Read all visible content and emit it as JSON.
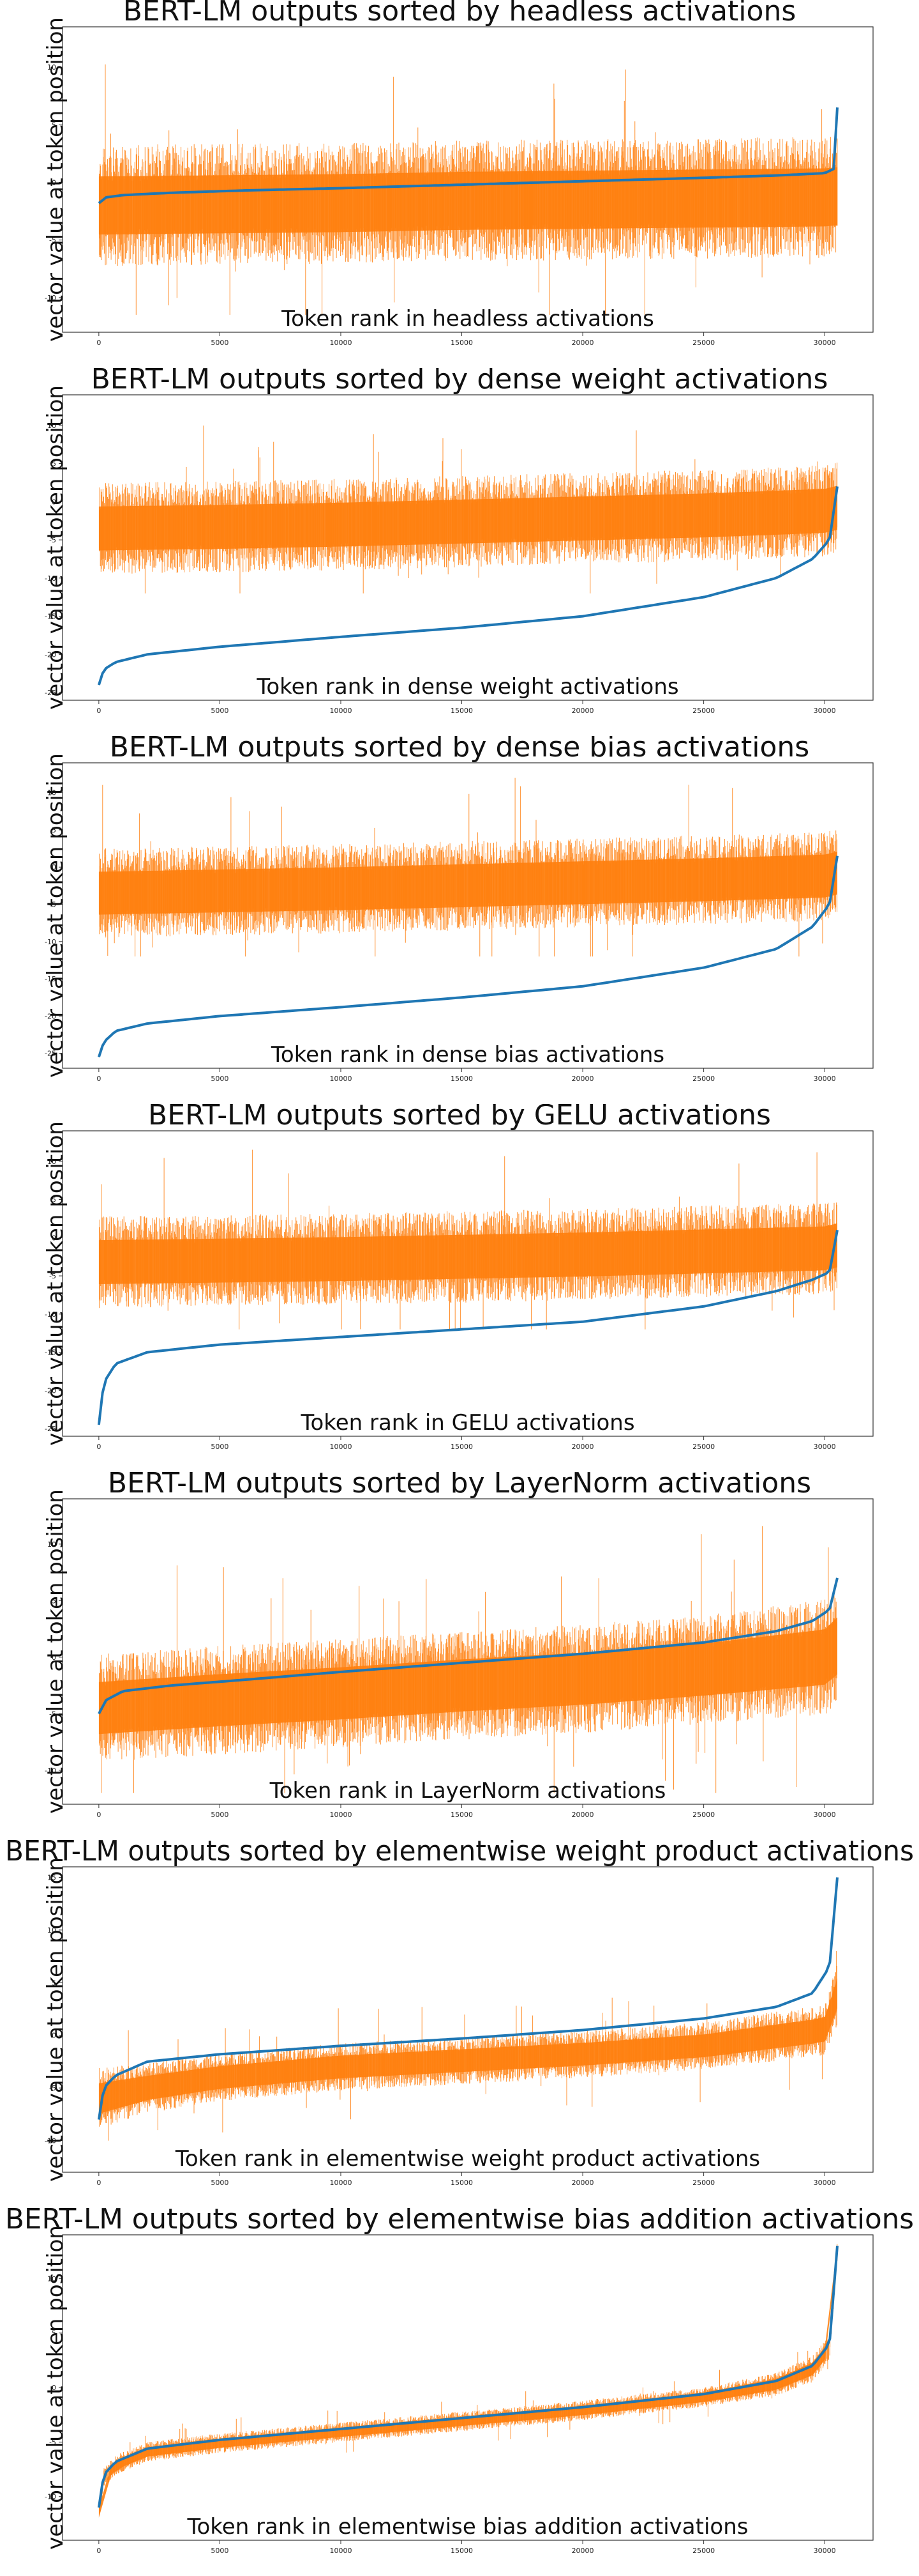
{
  "chart_data": [
    {
      "type": "line",
      "title": "BERT-LM outputs sorted by headless activations",
      "xlabel": "Token rank in headless activations",
      "ylabel": "vector value at token position",
      "xlim": [
        -1500,
        32000
      ],
      "ylim": [
        -13,
        13.5
      ],
      "xticks": [
        0,
        5000,
        10000,
        15000,
        20000,
        25000,
        30000
      ],
      "yticks": [
        -10,
        -5,
        0,
        5,
        10
      ],
      "grid": false,
      "series": [
        {
          "role": "sorted",
          "color": "#1f77b4",
          "x": [
            0,
            300,
            1000,
            3000,
            6000,
            10000,
            15000,
            20000,
            25000,
            28000,
            30000,
            30400,
            30522
          ],
          "y": [
            -1.8,
            -1.3,
            -1.1,
            -0.9,
            -0.7,
            -0.5,
            -0.2,
            0.1,
            0.4,
            0.6,
            0.8,
            1.2,
            6.5
          ]
        },
        {
          "role": "outputs",
          "color": "#ff7f0e",
          "x": [
            0,
            5000,
            10000,
            15000,
            20000,
            25000,
            30000,
            30522
          ],
          "center": [
            -2.0,
            -1.9,
            -1.8,
            -1.6,
            -1.5,
            -1.4,
            -1.3,
            -1.2
          ],
          "spread": [
            3.5,
            3.5,
            3.5,
            3.5,
            3.5,
            3.5,
            3.5,
            3.5
          ],
          "spike_max": 12.5,
          "spike_min": -11.5
        }
      ]
    },
    {
      "type": "line",
      "title": "BERT-LM outputs sorted by dense weight activations",
      "xlabel": "Token rank in dense weight activations",
      "ylabel": "vector value at token position",
      "xlim": [
        -1500,
        32000
      ],
      "ylim": [
        -26,
        14
      ],
      "xticks": [
        0,
        5000,
        10000,
        15000,
        20000,
        25000,
        30000
      ],
      "yticks": [
        -25,
        -20,
        -15,
        -10,
        -5,
        0,
        5,
        10
      ],
      "grid": false,
      "series": [
        {
          "role": "sorted",
          "color": "#1f77b4",
          "x": [
            0,
            200,
            700,
            2000,
            5000,
            10000,
            15000,
            20000,
            25000,
            28000,
            29500,
            30200,
            30522
          ],
          "y": [
            -24,
            -22,
            -21,
            -20,
            -19,
            -17.7,
            -16.5,
            -15,
            -12.5,
            -10,
            -7.5,
            -5,
            2
          ]
        },
        {
          "role": "outputs",
          "color": "#ff7f0e",
          "x": [
            0,
            5000,
            10000,
            15000,
            20000,
            25000,
            30000,
            30522
          ],
          "center": [
            -3.5,
            -3.3,
            -3.0,
            -2.6,
            -2.2,
            -1.8,
            -1.2,
            -0.8
          ],
          "spread": [
            4,
            4,
            4,
            4,
            4,
            4,
            4,
            4
          ],
          "spike_max": 12,
          "spike_min": -12
        }
      ]
    },
    {
      "type": "line",
      "title": "BERT-LM outputs sorted by dense bias activations",
      "xlabel": "Token rank in dense bias activations",
      "ylabel": "vector value at token position",
      "xlim": [
        -1500,
        32000
      ],
      "ylim": [
        -27,
        14
      ],
      "xticks": [
        0,
        5000,
        10000,
        15000,
        20000,
        25000,
        30000
      ],
      "yticks": [
        -25,
        -20,
        -15,
        -10,
        -5,
        0,
        5,
        10
      ],
      "grid": false,
      "series": [
        {
          "role": "sorted",
          "color": "#1f77b4",
          "x": [
            0,
            200,
            700,
            2000,
            5000,
            10000,
            15000,
            20000,
            25000,
            28000,
            29500,
            30200,
            30522
          ],
          "y": [
            -25.5,
            -23.5,
            -22,
            -21,
            -20,
            -18.8,
            -17.5,
            -16,
            -13.5,
            -11,
            -8,
            -5,
            1.5
          ]
        },
        {
          "role": "outputs",
          "color": "#ff7f0e",
          "x": [
            0,
            5000,
            10000,
            15000,
            20000,
            25000,
            30000,
            30522
          ],
          "center": [
            -3.5,
            -3.2,
            -2.9,
            -2.5,
            -2.1,
            -1.7,
            -1.2,
            -0.8
          ],
          "spread": [
            4,
            4,
            4,
            4,
            4,
            4,
            4,
            4
          ],
          "spike_max": 12,
          "spike_min": -12
        }
      ]
    },
    {
      "type": "line",
      "title": "BERT-LM outputs sorted by GELU activations",
      "xlabel": "Token rank in GELU activations",
      "ylabel": "vector value at token position",
      "xlim": [
        -1500,
        32000
      ],
      "ylim": [
        -26,
        14
      ],
      "xticks": [
        0,
        5000,
        10000,
        15000,
        20000,
        25000,
        30000
      ],
      "yticks": [
        -25,
        -20,
        -15,
        -10,
        -5,
        0,
        5,
        10
      ],
      "grid": false,
      "series": [
        {
          "role": "sorted",
          "color": "#1f77b4",
          "x": [
            0,
            200,
            700,
            2000,
            5000,
            10000,
            15000,
            20000,
            25000,
            28000,
            29500,
            30200,
            30522
          ],
          "y": [
            -24.5,
            -19,
            -16.5,
            -15,
            -14,
            -13,
            -12,
            -11,
            -9,
            -7,
            -5.5,
            -4.5,
            1
          ]
        },
        {
          "role": "outputs",
          "color": "#ff7f0e",
          "x": [
            0,
            5000,
            10000,
            15000,
            20000,
            25000,
            30000,
            30522
          ],
          "center": [
            -3.2,
            -3.0,
            -2.8,
            -2.5,
            -2.2,
            -1.8,
            -1.4,
            -1.0
          ],
          "spread": [
            4,
            4,
            4,
            4,
            4,
            4,
            4,
            4
          ],
          "spike_max": 12,
          "spike_min": -12
        }
      ]
    },
    {
      "type": "line",
      "title": "BERT-LM outputs sorted by LayerNorm activations",
      "xlabel": "Token rank in LayerNorm activations",
      "ylabel": "vector value at token position",
      "xlim": [
        -1500,
        32000
      ],
      "ylim": [
        -13,
        14
      ],
      "xticks": [
        0,
        5000,
        10000,
        15000,
        20000,
        25000,
        30000
      ],
      "yticks": [
        -10,
        -5,
        0,
        5,
        10
      ],
      "grid": false,
      "series": [
        {
          "role": "sorted",
          "color": "#1f77b4",
          "x": [
            0,
            300,
            1000,
            3000,
            6000,
            10000,
            15000,
            20000,
            25000,
            28000,
            29500,
            30200,
            30522
          ],
          "y": [
            -5,
            -3.8,
            -3,
            -2.5,
            -2,
            -1.3,
            -0.5,
            0.3,
            1.3,
            2.3,
            3.2,
            4.2,
            7
          ]
        },
        {
          "role": "outputs",
          "color": "#ff7f0e",
          "x": [
            0,
            5000,
            10000,
            15000,
            20000,
            25000,
            30000,
            30522
          ],
          "center": [
            -4.5,
            -3.8,
            -3.2,
            -2.5,
            -1.9,
            -1.1,
            0.0,
            1.0
          ],
          "spread": [
            3.2,
            3.2,
            3.2,
            3.2,
            3.2,
            3.2,
            3.4,
            3.5
          ],
          "spike_max": 13,
          "spike_min": -12
        }
      ]
    },
    {
      "type": "line",
      "title": "BERT-LM outputs sorted by elementwise weight product activations",
      "xlabel": "Token rank in elementwise weight product activations",
      "ylabel": "vector value at token position",
      "xlim": [
        -1500,
        32000
      ],
      "ylim": [
        -13,
        16
      ],
      "xticks": [
        0,
        5000,
        10000,
        15000,
        20000,
        25000,
        30000
      ],
      "yticks": [
        -10,
        -5,
        0,
        5,
        10,
        15
      ],
      "grid": false,
      "series": [
        {
          "role": "sorted",
          "color": "#1f77b4",
          "x": [
            0,
            200,
            700,
            2000,
            5000,
            10000,
            15000,
            20000,
            25000,
            28000,
            29500,
            30200,
            30522
          ],
          "y": [
            -8,
            -5,
            -3.8,
            -2.5,
            -1.8,
            -1,
            -0.3,
            0.5,
            1.6,
            2.7,
            4,
            6.5,
            15
          ]
        },
        {
          "role": "outputs",
          "color": "#ff7f0e",
          "x": [
            0,
            2000,
            5000,
            10000,
            15000,
            20000,
            25000,
            30000,
            30522
          ],
          "center": [
            -6,
            -5,
            -4,
            -3,
            -2.4,
            -1.8,
            -1.0,
            0.5,
            4
          ],
          "spread": [
            2.0,
            1.6,
            1.5,
            1.5,
            1.5,
            1.5,
            1.5,
            1.6,
            2.0
          ],
          "spike_max": 8,
          "spike_min": -10
        }
      ]
    },
    {
      "type": "line",
      "title": "BERT-LM outputs sorted by elementwise bias addition activations",
      "xlabel": "Token rank in elementwise bias addition activations",
      "ylabel": "vector value at token position",
      "xlim": [
        -1500,
        32000
      ],
      "ylim": [
        -14,
        14
      ],
      "xticks": [
        0,
        5000,
        10000,
        15000,
        20000,
        25000,
        30000
      ],
      "yticks": [
        -10,
        -5,
        0,
        5,
        10
      ],
      "grid": false,
      "series": [
        {
          "role": "sorted",
          "color": "#1f77b4",
          "x": [
            0,
            200,
            700,
            2000,
            5000,
            10000,
            15000,
            20000,
            25000,
            28000,
            29500,
            30200,
            30522
          ],
          "y": [
            -11,
            -8,
            -6.8,
            -5.6,
            -4.8,
            -3.8,
            -2.8,
            -1.8,
            -0.6,
            0.6,
            2,
            4,
            13
          ]
        },
        {
          "role": "outputs",
          "color": "#ff7f0e",
          "x": [
            0,
            200,
            700,
            2000,
            5000,
            10000,
            15000,
            20000,
            25000,
            28000,
            29500,
            30200,
            30522
          ],
          "center": [
            -11.5,
            -8.3,
            -7.1,
            -5.9,
            -5.1,
            -4.1,
            -3.1,
            -2.1,
            -0.9,
            0.3,
            1.7,
            3.7,
            12.7
          ],
          "spread": [
            0.6,
            0.6,
            0.6,
            0.6,
            0.6,
            0.6,
            0.6,
            0.6,
            0.6,
            0.7,
            0.8,
            0.8,
            0.6
          ],
          "spike_max": 5,
          "spike_min": -8
        }
      ]
    }
  ]
}
